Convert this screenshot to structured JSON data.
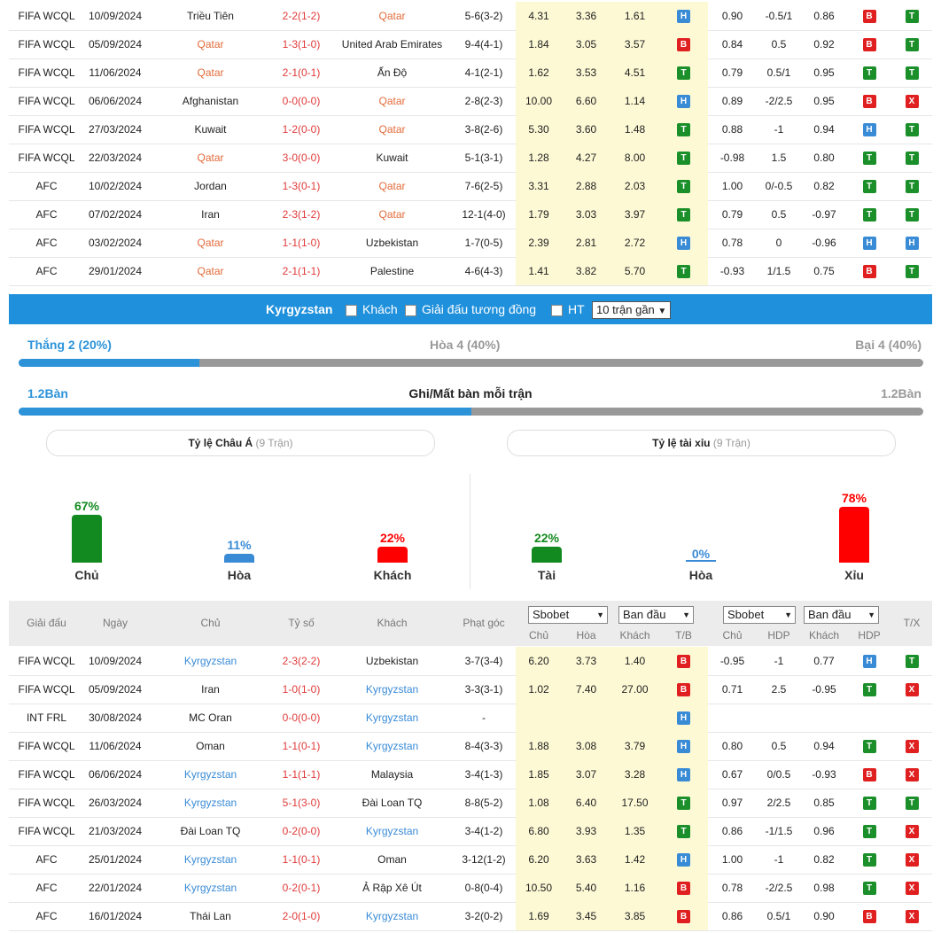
{
  "top_rows": [
    {
      "league": "FIFA WCQL",
      "date": "10/09/2024",
      "home": "Triều Tiên",
      "home_team": "other",
      "score": "2-2(1-2)",
      "away": "Qatar",
      "away_team": "qatar",
      "corner": "5-6(3-2)",
      "o1": "4.31",
      "o2": "3.36",
      "o3": "1.61",
      "tb": "H",
      "a1": "0.90",
      "a2": "-0.5/1",
      "a3": "0.86",
      "hdp": "B",
      "tx": "T"
    },
    {
      "league": "FIFA WCQL",
      "date": "05/09/2024",
      "home": "Qatar",
      "home_team": "qatar",
      "score": "1-3(1-0)",
      "away": "United Arab Emirates",
      "away_team": "other",
      "corner": "9-4(4-1)",
      "o1": "1.84",
      "o2": "3.05",
      "o3": "3.57",
      "tb": "B",
      "a1": "0.84",
      "a2": "0.5",
      "a3": "0.92",
      "hdp": "B",
      "tx": "T"
    },
    {
      "league": "FIFA WCQL",
      "date": "11/06/2024",
      "home": "Qatar",
      "home_team": "qatar",
      "score": "2-1(0-1)",
      "away": "Ấn Độ",
      "away_team": "other",
      "corner": "4-1(2-1)",
      "o1": "1.62",
      "o2": "3.53",
      "o3": "4.51",
      "tb": "T",
      "a1": "0.79",
      "a2": "0.5/1",
      "a3": "0.95",
      "hdp": "T",
      "tx": "T"
    },
    {
      "league": "FIFA WCQL",
      "date": "06/06/2024",
      "home": "Afghanistan",
      "home_team": "other",
      "score": "0-0(0-0)",
      "away": "Qatar",
      "away_team": "qatar",
      "corner": "2-8(2-3)",
      "o1": "10.00",
      "o2": "6.60",
      "o3": "1.14",
      "tb": "H",
      "a1": "0.89",
      "a2": "-2/2.5",
      "a3": "0.95",
      "hdp": "B",
      "tx": "X"
    },
    {
      "league": "FIFA WCQL",
      "date": "27/03/2024",
      "home": "Kuwait",
      "home_team": "other",
      "score": "1-2(0-0)",
      "away": "Qatar",
      "away_team": "qatar",
      "corner": "3-8(2-6)",
      "o1": "5.30",
      "o2": "3.60",
      "o3": "1.48",
      "tb": "T",
      "a1": "0.88",
      "a2": "-1",
      "a3": "0.94",
      "hdp": "H",
      "tx": "T"
    },
    {
      "league": "FIFA WCQL",
      "date": "22/03/2024",
      "home": "Qatar",
      "home_team": "qatar",
      "score": "3-0(0-0)",
      "away": "Kuwait",
      "away_team": "other",
      "corner": "5-1(3-1)",
      "o1": "1.28",
      "o2": "4.27",
      "o3": "8.00",
      "tb": "T",
      "a1": "-0.98",
      "a2": "1.5",
      "a3": "0.80",
      "hdp": "T",
      "tx": "T"
    },
    {
      "league": "AFC",
      "date": "10/02/2024",
      "home": "Jordan",
      "home_team": "other",
      "score": "1-3(0-1)",
      "away": "Qatar",
      "away_team": "qatar",
      "corner": "7-6(2-5)",
      "o1": "3.31",
      "o2": "2.88",
      "o3": "2.03",
      "tb": "T",
      "a1": "1.00",
      "a2": "0/-0.5",
      "a3": "0.82",
      "hdp": "T",
      "tx": "T"
    },
    {
      "league": "AFC",
      "date": "07/02/2024",
      "home": "Iran",
      "home_team": "other",
      "score": "2-3(1-2)",
      "away": "Qatar",
      "away_team": "qatar",
      "corner": "12-1(4-0)",
      "o1": "1.79",
      "o2": "3.03",
      "o3": "3.97",
      "tb": "T",
      "a1": "0.79",
      "a2": "0.5",
      "a3": "-0.97",
      "hdp": "T",
      "tx": "T"
    },
    {
      "league": "AFC",
      "date": "03/02/2024",
      "home": "Qatar",
      "home_team": "qatar",
      "score": "1-1(1-0)",
      "away": "Uzbekistan",
      "away_team": "other",
      "corner": "1-7(0-5)",
      "o1": "2.39",
      "o2": "2.81",
      "o3": "2.72",
      "tb": "H",
      "a1": "0.78",
      "a2": "0",
      "a3": "-0.96",
      "hdp": "H",
      "tx": "H"
    },
    {
      "league": "AFC",
      "date": "29/01/2024",
      "home": "Qatar",
      "home_team": "qatar",
      "score": "2-1(1-1)",
      "away": "Palestine",
      "away_team": "other",
      "corner": "4-6(4-3)",
      "o1": "1.41",
      "o2": "3.82",
      "o3": "5.70",
      "tb": "T",
      "a1": "-0.93",
      "a2": "1/1.5",
      "a3": "0.75",
      "hdp": "B",
      "tx": "T"
    }
  ],
  "filter_bar": {
    "team": "Kyrgyzstan",
    "opt_away": "Khách",
    "opt_same_league": "Giải đấu tương đồng",
    "opt_ht": "HT",
    "recent_select": "10 trận gần"
  },
  "summary": {
    "win_label": "Thắng 2 (20%)",
    "draw_label": "Hòa 4 (40%)",
    "loss_label": "Bại 4 (40%)",
    "win_fraction": 0.2,
    "goals_left": "1.2Bàn",
    "goals_title": "Ghi/Mất bàn mỗi trận",
    "goals_right": "1.2Bàn",
    "goals_fraction": 0.5
  },
  "asian": {
    "title": "Tỷ lệ Châu Á",
    "count": "(9 Trận)",
    "bars": [
      {
        "label": "Chủ",
        "pct": "67%",
        "value": 67,
        "color": "#138a1f"
      },
      {
        "label": "Hòa",
        "pct": "11%",
        "value": 11,
        "color": "#3a8bd6"
      },
      {
        "label": "Khách",
        "pct": "22%",
        "value": 22,
        "color": "#ff0000"
      }
    ]
  },
  "ou": {
    "title": "Tỷ lệ tài xỉu",
    "count": "(9 Trận)",
    "bars": [
      {
        "label": "Tài",
        "pct": "22%",
        "value": 22,
        "color": "#138a1f"
      },
      {
        "label": "Hòa",
        "pct": "0%",
        "value": 0,
        "color": "#3a8bd6"
      },
      {
        "label": "Xỉu",
        "pct": "78%",
        "value": 78,
        "color": "#ff0000"
      }
    ]
  },
  "header": {
    "league": "Giải đấu",
    "date": "Ngày",
    "home": "Chủ",
    "score": "Tỷ số",
    "away": "Khách",
    "corner": "Phạt góc",
    "sel1": "Sbobet",
    "sel2": "Ban đầu",
    "sel3": "Sbobet",
    "sel4": "Ban đầu",
    "sub_home": "Chủ",
    "sub_draw": "Hòa",
    "sub_away": "Khách",
    "sub_tb": "T/B",
    "sub_home2": "Chủ",
    "sub_hdp": "HDP",
    "sub_away2": "Khách",
    "sub_hdp2": "HDP",
    "tx": "T/X"
  },
  "bottom_rows": [
    {
      "league": "FIFA WCQL",
      "date": "10/09/2024",
      "home": "Kyrgyzstan",
      "home_team": "kyr",
      "score": "2-3(2-2)",
      "away": "Uzbekistan",
      "away_team": "other",
      "corner": "3-7(3-4)",
      "o1": "6.20",
      "o2": "3.73",
      "o3": "1.40",
      "tb": "B",
      "a1": "-0.95",
      "a2": "-1",
      "a3": "0.77",
      "hdp": "H",
      "tx": "T"
    },
    {
      "league": "FIFA WCQL",
      "date": "05/09/2024",
      "home": "Iran",
      "home_team": "other",
      "score": "1-0(1-0)",
      "away": "Kyrgyzstan",
      "away_team": "kyr",
      "corner": "3-3(3-1)",
      "o1": "1.02",
      "o2": "7.40",
      "o3": "27.00",
      "tb": "B",
      "a1": "0.71",
      "a2": "2.5",
      "a3": "-0.95",
      "hdp": "T",
      "tx": "X"
    },
    {
      "league": "INT FRL",
      "date": "30/08/2024",
      "home": "MC Oran",
      "home_team": "other",
      "score": "0-0(0-0)",
      "away": "Kyrgyzstan",
      "away_team": "kyr",
      "corner": "-",
      "o1": "",
      "o2": "",
      "o3": "",
      "tb": "H",
      "a1": "",
      "a2": "",
      "a3": "",
      "hdp": "",
      "tx": ""
    },
    {
      "league": "FIFA WCQL",
      "date": "11/06/2024",
      "home": "Oman",
      "home_team": "other",
      "score": "1-1(0-1)",
      "away": "Kyrgyzstan",
      "away_team": "kyr",
      "corner": "8-4(3-3)",
      "o1": "1.88",
      "o2": "3.08",
      "o3": "3.79",
      "tb": "H",
      "a1": "0.80",
      "a2": "0.5",
      "a3": "0.94",
      "hdp": "T",
      "tx": "X"
    },
    {
      "league": "FIFA WCQL",
      "date": "06/06/2024",
      "home": "Kyrgyzstan",
      "home_team": "kyr",
      "score": "1-1(1-1)",
      "away": "Malaysia",
      "away_team": "other",
      "corner": "3-4(1-3)",
      "o1": "1.85",
      "o2": "3.07",
      "o3": "3.28",
      "tb": "H",
      "a1": "0.67",
      "a2": "0/0.5",
      "a3": "-0.93",
      "hdp": "B",
      "tx": "X"
    },
    {
      "league": "FIFA WCQL",
      "date": "26/03/2024",
      "home": "Kyrgyzstan",
      "home_team": "kyr",
      "score": "5-1(3-0)",
      "away": "Đài Loan TQ",
      "away_team": "other",
      "corner": "8-8(5-2)",
      "o1": "1.08",
      "o2": "6.40",
      "o3": "17.50",
      "tb": "T",
      "a1": "0.97",
      "a2": "2/2.5",
      "a3": "0.85",
      "hdp": "T",
      "tx": "T"
    },
    {
      "league": "FIFA WCQL",
      "date": "21/03/2024",
      "home": "Đài Loan TQ",
      "home_team": "other",
      "score": "0-2(0-0)",
      "away": "Kyrgyzstan",
      "away_team": "kyr",
      "corner": "3-4(1-2)",
      "o1": "6.80",
      "o2": "3.93",
      "o3": "1.35",
      "tb": "T",
      "a1": "0.86",
      "a2": "-1/1.5",
      "a3": "0.96",
      "hdp": "T",
      "tx": "X"
    },
    {
      "league": "AFC",
      "date": "25/01/2024",
      "home": "Kyrgyzstan",
      "home_team": "kyr",
      "score": "1-1(0-1)",
      "away": "Oman",
      "away_team": "other",
      "corner": "3-12(1-2)",
      "o1": "6.20",
      "o2": "3.63",
      "o3": "1.42",
      "tb": "H",
      "a1": "1.00",
      "a2": "-1",
      "a3": "0.82",
      "hdp": "T",
      "tx": "X"
    },
    {
      "league": "AFC",
      "date": "22/01/2024",
      "home": "Kyrgyzstan",
      "home_team": "kyr",
      "score": "0-2(0-1)",
      "away": "Ả Rập Xê Út",
      "away_team": "other",
      "corner": "0-8(0-4)",
      "o1": "10.50",
      "o2": "5.40",
      "o3": "1.16",
      "tb": "B",
      "a1": "0.78",
      "a2": "-2/2.5",
      "a3": "0.98",
      "hdp": "T",
      "tx": "X"
    },
    {
      "league": "AFC",
      "date": "16/01/2024",
      "home": "Thái Lan",
      "home_team": "other",
      "score": "2-0(1-0)",
      "away": "Kyrgyzstan",
      "away_team": "kyr",
      "corner": "3-2(0-2)",
      "o1": "1.69",
      "o2": "3.45",
      "o3": "3.85",
      "tb": "B",
      "a1": "0.86",
      "a2": "0.5/1",
      "a3": "0.90",
      "hdp": "B",
      "tx": "X"
    }
  ]
}
